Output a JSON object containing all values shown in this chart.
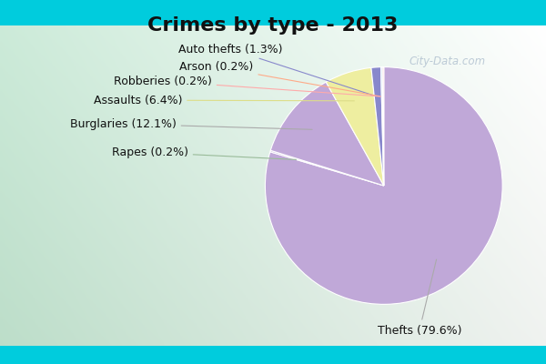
{
  "title": "Crimes by type - 2013",
  "slices": [
    {
      "label": "Thefts",
      "pct": 79.6,
      "color": "#C0A8D8"
    },
    {
      "label": "Rapes",
      "pct": 0.2,
      "color": "#C0A8D8"
    },
    {
      "label": "Burglaries",
      "pct": 12.1,
      "color": "#C0A8D8"
    },
    {
      "label": "Assaults",
      "pct": 6.4,
      "color": "#EEEEA0"
    },
    {
      "label": "Auto thefts",
      "pct": 1.3,
      "color": "#8888CC"
    },
    {
      "label": "Arson",
      "pct": 0.2,
      "color": "#AACCEE"
    },
    {
      "label": "Robberies",
      "pct": 0.2,
      "color": "#FFCCCC"
    }
  ],
  "label_texts": [
    "Thefts (79.6%)",
    "Rapes (0.2%)",
    "Burglaries (12.1%)",
    "Assaults (6.4%)",
    "Auto thefts (1.3%)",
    "Arson (0.2%)",
    "Robberies (0.2%)"
  ],
  "line_colors": [
    "#AAAAAA",
    "#99BB99",
    "#AAAAAA",
    "#DDDD88",
    "#8888CC",
    "#FFAA88",
    "#FFAAAA"
  ],
  "bg_top": "#00CCDD",
  "bg_gradient_start": "#E8F5E8",
  "bg_gradient_end": "#C8E8D8",
  "title_fontsize": 16,
  "label_fontsize": 9,
  "watermark": "City-Data.com"
}
